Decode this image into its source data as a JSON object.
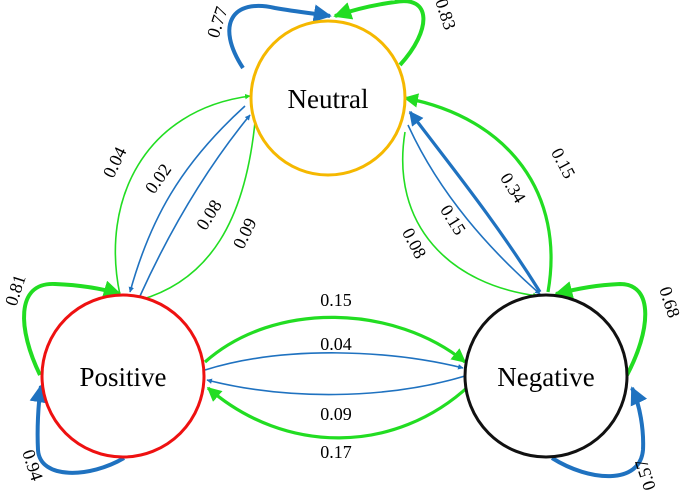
{
  "colors": {
    "green": "#22dd22",
    "blue": "#1f72c0",
    "neutral_border": "#f5b800",
    "positive_border": "#ee1111",
    "negative_border": "#111111"
  },
  "nodes": {
    "neutral": {
      "label": "Neutral"
    },
    "positive": {
      "label": "Positive"
    },
    "negative": {
      "label": "Negative"
    }
  },
  "edges": [
    {
      "from": "Neutral",
      "to": "Neutral",
      "probability": "0.77",
      "color": "blue"
    },
    {
      "from": "Neutral",
      "to": "Neutral",
      "probability": "0.83",
      "color": "green"
    },
    {
      "from": "Positive",
      "to": "Positive",
      "probability": "0.81",
      "color": "green"
    },
    {
      "from": "Positive",
      "to": "Positive",
      "probability": "0.94",
      "color": "blue"
    },
    {
      "from": "Negative",
      "to": "Negative",
      "probability": "0.68",
      "color": "green"
    },
    {
      "from": "Negative",
      "to": "Negative",
      "probability": "0.57",
      "color": "blue"
    },
    {
      "from": "Positive",
      "to": "Neutral",
      "probability": "0.04",
      "color": "green"
    },
    {
      "from": "Neutral",
      "to": "Positive",
      "probability": "0.02",
      "color": "blue"
    },
    {
      "from": "Positive",
      "to": "Neutral",
      "probability": "0.08",
      "color": "blue"
    },
    {
      "from": "Neutral",
      "to": "Positive",
      "probability": "0.09",
      "color": "green"
    },
    {
      "from": "Negative",
      "to": "Neutral",
      "probability": "0.15",
      "color": "green"
    },
    {
      "from": "Negative",
      "to": "Neutral",
      "probability": "0.34",
      "color": "blue"
    },
    {
      "from": "Neutral",
      "to": "Negative",
      "probability": "0.15",
      "color": "blue"
    },
    {
      "from": "Neutral",
      "to": "Negative",
      "probability": "0.08",
      "color": "green"
    },
    {
      "from": "Positive",
      "to": "Negative",
      "probability": "0.15",
      "color": "green"
    },
    {
      "from": "Positive",
      "to": "Negative",
      "probability": "0.04",
      "color": "blue"
    },
    {
      "from": "Negative",
      "to": "Positive",
      "probability": "0.09",
      "color": "blue"
    },
    {
      "from": "Negative",
      "to": "Positive",
      "probability": "0.17",
      "color": "green"
    }
  ]
}
